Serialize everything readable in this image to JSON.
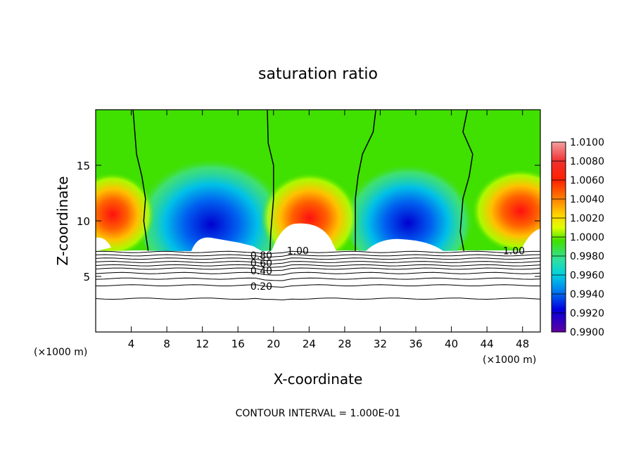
{
  "chart_data": {
    "type": "heatmap",
    "title": "saturation ratio",
    "xlabel": "X-coordinate",
    "ylabel": "Z-coordinate",
    "x_units_left": "(×1000 m)",
    "x_units_right": "(×1000 m)",
    "footer": "CONTOUR INTERVAL = 1.000E-01",
    "xlim": [
      0,
      50
    ],
    "ylim": [
      0,
      20
    ],
    "x_ticks": [
      4,
      8,
      12,
      16,
      20,
      24,
      28,
      32,
      36,
      40,
      44,
      48
    ],
    "x_tick_labels": [
      "4",
      "8",
      "12",
      "16",
      "20",
      "24",
      "28",
      "32",
      "36",
      "40",
      "44",
      "48"
    ],
    "y_ticks": [
      5,
      10,
      15
    ],
    "y_tick_labels": [
      "5",
      "10",
      "15"
    ],
    "colorbar": {
      "ticks": [
        "1.0100",
        "1.0080",
        "1.0060",
        "1.0040",
        "1.0020",
        "1.0000",
        "0.9980",
        "0.9960",
        "0.9940",
        "0.9920",
        "0.9900"
      ],
      "values": [
        1.01,
        1.008,
        1.006,
        1.004,
        1.002,
        1.0,
        0.998,
        0.996,
        0.994,
        0.992,
        0.99
      ],
      "colors": [
        "#f4a0a0",
        "#f03030",
        "#ff2000",
        "#ff8000",
        "#ffd000",
        "#e0ff00",
        "#40e000",
        "#30e0a0",
        "#00d0e0",
        "#0080f0",
        "#0000e0",
        "#6000a0"
      ]
    },
    "contour_labels": [
      {
        "text": "1.00",
        "x": 21.5,
        "y": 7.3
      },
      {
        "text": "1.00",
        "x": 45.8,
        "y": 7.3
      },
      {
        "text": "0.80",
        "x": 17.4,
        "y": 6.9
      },
      {
        "text": "0.60",
        "x": 17.4,
        "y": 6.2
      },
      {
        "text": "0.40",
        "x": 17.4,
        "y": 5.5
      },
      {
        "text": "0.20",
        "x": 17.4,
        "y": 4.1
      }
    ],
    "contour_levels_below": [
      7.2,
      6.9,
      6.6,
      6.3,
      6.0,
      5.7,
      5.3,
      4.8,
      4.2,
      3.0
    ],
    "saturation_boundary_x": [
      [
        [
          4.2,
          20
        ],
        [
          4.4,
          18
        ],
        [
          4.6,
          16
        ],
        [
          5.2,
          14
        ],
        [
          5.6,
          12
        ],
        [
          5.4,
          10
        ],
        [
          5.9,
          7.3
        ]
      ],
      [
        [
          19.3,
          20
        ],
        [
          19.4,
          17
        ],
        [
          20.0,
          15
        ],
        [
          20.0,
          12
        ],
        [
          19.7,
          9
        ],
        [
          19.6,
          7.3
        ]
      ],
      [
        [
          31.5,
          20
        ],
        [
          31.2,
          18
        ],
        [
          30.0,
          16
        ],
        [
          29.5,
          14
        ],
        [
          29.2,
          12
        ],
        [
          29.2,
          7.3
        ]
      ],
      [
        [
          41.8,
          20
        ],
        [
          41.3,
          18
        ],
        [
          42.4,
          16
        ],
        [
          42.0,
          14
        ],
        [
          41.3,
          12
        ],
        [
          41.0,
          9
        ],
        [
          41.4,
          7.3
        ]
      ]
    ]
  }
}
